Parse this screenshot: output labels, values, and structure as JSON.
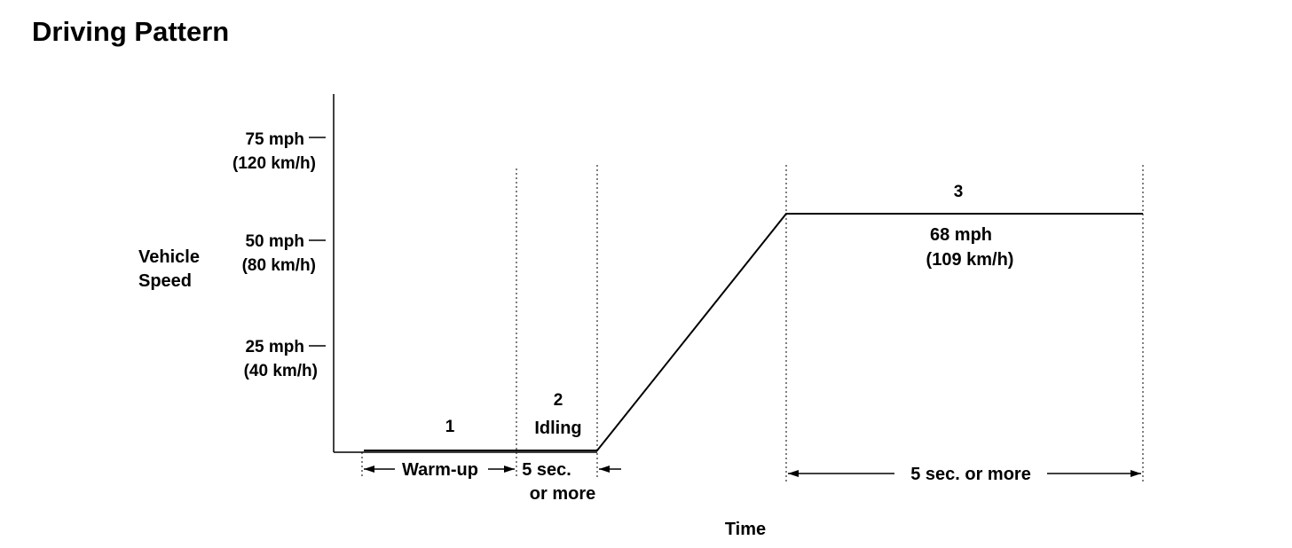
{
  "title": "Driving Pattern",
  "chart_data": {
    "type": "line",
    "title": "Driving Pattern",
    "ylabel": [
      "Vehicle",
      "Speed"
    ],
    "xlabel": "Time",
    "y_ticks": [
      {
        "value": 75,
        "label": "75 mph",
        "sublabel": "(120 km/h)"
      },
      {
        "value": 50,
        "label": "50 mph",
        "sublabel": "(80 km/h)"
      },
      {
        "value": 25,
        "label": "25 mph",
        "sublabel": "(40 km/h)"
      }
    ],
    "ylim": [
      0,
      85
    ],
    "x_ticks": [],
    "series": [
      {
        "speed_profile": [
          {
            "phase": 1,
            "speed": 0
          },
          {
            "phase": 1,
            "speed": 0
          },
          {
            "phase": 2,
            "speed": 0
          },
          {
            "phase": 2,
            "speed": 0
          },
          {
            "phase": 3,
            "speed": 68
          },
          {
            "phase": 3,
            "speed": 68
          }
        ]
      }
    ],
    "phases": [
      {
        "number": "1",
        "label": "",
        "duration": "Warm-up"
      },
      {
        "number": "2",
        "label": "Idling",
        "duration_lines": [
          "5 sec.",
          "or more"
        ]
      },
      {
        "number": "3",
        "label": "",
        "speed_lines": [
          "68 mph",
          "(109 km/h)"
        ],
        "duration": "5 sec. or more"
      }
    ]
  }
}
